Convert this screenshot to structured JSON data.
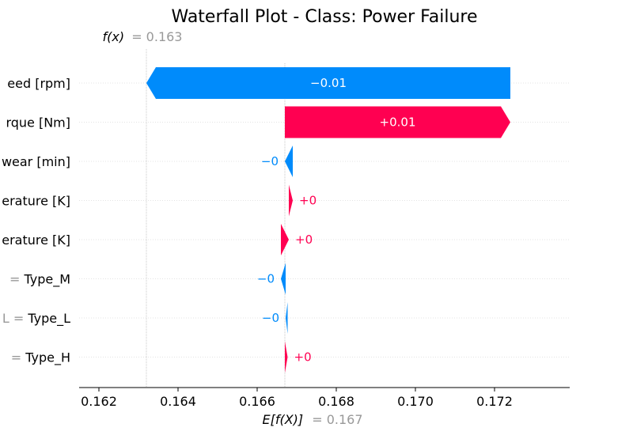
{
  "chart_data": {
    "type": "waterfall",
    "title": "Waterfall Plot - Class: Power Failure",
    "fx_label": "f(x)",
    "fx_value": "= 0.163",
    "efx_label": "E[f(X)]",
    "efx_value": "= 0.167",
    "base_value": 0.1667,
    "final_value": 0.1632,
    "xlim": [
      0.1615,
      0.1739
    ],
    "xticks": [
      0.162,
      0.164,
      0.166,
      0.168,
      0.17,
      0.172
    ],
    "xtick_labels": [
      "0.162",
      "0.164",
      "0.166",
      "0.168",
      "0.170",
      "0.172"
    ],
    "features": [
      {
        "label": "eed [rpm]",
        "start": 0.1724,
        "end": 0.1632,
        "value_label": "−0.01"
      },
      {
        "label": "rque [Nm]",
        "start": 0.1667,
        "end": 0.1724,
        "value_label": "+0.01"
      },
      {
        "label": "wear [min]",
        "start": 0.1669,
        "end": 0.1667,
        "value_label": "−0"
      },
      {
        "label": "erature [K]",
        "start": 0.1668,
        "end": 0.1669,
        "value_label": "+0"
      },
      {
        "label": "erature [K]",
        "start": 0.1666,
        "end": 0.1668,
        "value_label": "+0"
      },
      {
        "label": "= Type_M",
        "label_gray": "=",
        "label_black": "Type_M",
        "start": 0.16672,
        "end": 0.1666,
        "value_label": "−0"
      },
      {
        "label": "L = Type_L",
        "label_gray": "L =",
        "label_black": "Type_L",
        "start": 0.16677,
        "end": 0.16672,
        "value_label": "−0"
      },
      {
        "label": "= Type_H",
        "label_gray": "=",
        "label_black": "Type_H",
        "start": 0.1667,
        "end": 0.16677,
        "value_label": "+0"
      }
    ],
    "colors": {
      "positive": "#ff0051",
      "negative": "#008bfb",
      "gray": "#999999"
    }
  }
}
